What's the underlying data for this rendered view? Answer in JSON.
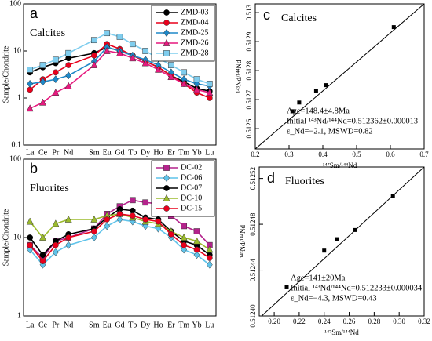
{
  "chart_data": [
    {
      "type": "line",
      "panel_label": "a",
      "subtitle": "Calcites",
      "y_label": "Sample/Chondrite",
      "log_scale": true,
      "categories": [
        "La",
        "Ce",
        "Pr",
        "Nd",
        "Sm",
        "Eu",
        "Gd",
        "Tb",
        "Dy",
        "Ho",
        "Er",
        "Tm",
        "Yb",
        "Lu"
      ],
      "ylim": [
        0.1,
        100
      ],
      "yticks": [
        0.1,
        1,
        10,
        100
      ],
      "legend": "upper right",
      "series": [
        {
          "name": "ZMD-03",
          "color": "#000000",
          "marker": "circle",
          "values": [
            3.5,
            4.5,
            5.5,
            7,
            9,
            12,
            10,
            8,
            6,
            4.5,
            3,
            2.2,
            1.6,
            1.4
          ]
        },
        {
          "name": "ZMD-04",
          "color": "#e8001c",
          "marker": "circle",
          "values": [
            1.5,
            2.5,
            3.5,
            5,
            8,
            14,
            11,
            8,
            6,
            4.5,
            3,
            2,
            1.3,
            1.0
          ]
        },
        {
          "name": "ZMD-25",
          "color": "#1e88c8",
          "marker": "diamond",
          "values": [
            2,
            2.2,
            2.5,
            3,
            6,
            12,
            10,
            8,
            6.5,
            5,
            3.5,
            2.5,
            2,
            1.8
          ]
        },
        {
          "name": "ZMD-26",
          "color": "#e6197e",
          "marker": "triangle",
          "values": [
            0.6,
            0.8,
            1.3,
            1.8,
            5,
            10,
            9,
            7,
            5.5,
            4,
            2.8,
            2,
            1.5,
            1.3
          ]
        },
        {
          "name": "ZMD-28",
          "color": "#7fcdee",
          "marker": "square",
          "values": [
            4,
            5,
            6.5,
            9,
            17,
            24,
            20,
            14,
            10,
            7,
            5,
            3.5,
            2.5,
            2
          ]
        }
      ]
    },
    {
      "type": "scatter",
      "panel_label": "c",
      "subtitle": "Calcites",
      "x_label": "¹⁴⁷Sm/¹⁴⁴Nd",
      "y_label": "¹⁴³Nd/¹⁴⁴Nd",
      "xlim": [
        0.2,
        0.7
      ],
      "xticks": [
        0.2,
        0.3,
        0.4,
        0.5,
        0.6,
        0.7
      ],
      "ylim": [
        0.51253,
        0.51303
      ],
      "yticks": [
        0.5126,
        0.5127,
        0.5128,
        0.5129,
        0.513
      ],
      "color": "#000000",
      "x": [
        0.31,
        0.33,
        0.38,
        0.41,
        0.61
      ],
      "values": [
        0.51266,
        0.51269,
        0.51273,
        0.51275,
        0.51295
      ],
      "fit_line": {
        "x": [
          0.2,
          0.7
        ],
        "y": [
          0.51253,
          0.51303
        ]
      },
      "annotations": [
        "Age=148.4±4.8Ma",
        "Initial ¹⁴³Nd/¹⁴⁴Nd=0.512362±0.000013",
        "ε_Nd=−2.1, MSWD=0.82"
      ]
    },
    {
      "type": "line",
      "panel_label": "b",
      "subtitle": "Fluorites",
      "y_label": "Sample/Chondrite",
      "log_scale": true,
      "categories": [
        "La",
        "Ce",
        "Pr",
        "Nd",
        "Sm",
        "Eu",
        "Gd",
        "Tb",
        "Dy",
        "Ho",
        "Er",
        "Tm",
        "Yb",
        "Lu"
      ],
      "ylim": [
        1,
        100
      ],
      "yticks": [
        1,
        10,
        100
      ],
      "legend": "upper right",
      "series": [
        {
          "name": "DC-02",
          "color": "#b4238c",
          "marker": "square",
          "values": [
            8,
            5.5,
            9,
            10,
            13,
            20,
            25,
            30,
            28,
            27,
            19,
            14,
            12,
            8
          ]
        },
        {
          "name": "DC-06",
          "color": "#5fc3ea",
          "marker": "diamond",
          "values": [
            7,
            4.5,
            6.5,
            8,
            10,
            14,
            17,
            16,
            14,
            13,
            10,
            7,
            6,
            4.5
          ]
        },
        {
          "name": "DC-07",
          "color": "#000000",
          "marker": "circle",
          "values": [
            10,
            6,
            9,
            11,
            13,
            18,
            23,
            22,
            18,
            17,
            12,
            9,
            8,
            6
          ]
        },
        {
          "name": "DC-10",
          "color": "#9bbb2c",
          "marker": "triangle",
          "values": [
            16,
            10,
            15,
            17,
            17,
            19,
            20,
            18,
            16,
            15,
            12,
            10,
            9,
            7
          ]
        },
        {
          "name": "DC-15",
          "color": "#e8001c",
          "marker": "circle",
          "values": [
            8,
            5,
            8,
            10,
            12,
            17,
            20,
            19,
            17,
            16,
            11,
            8,
            7,
            5.5
          ]
        }
      ]
    },
    {
      "type": "scatter",
      "panel_label": "d",
      "subtitle": "Fluorites",
      "x_label": "¹⁴⁷Sm/¹⁴⁴Nd",
      "y_label": "¹⁴³Nd/¹⁴⁴Nd",
      "xlim": [
        0.188,
        0.32
      ],
      "xticks": [
        {
          "value": 0.2,
          "label": "0.20"
        },
        {
          "value": 0.22,
          "label": "0.22"
        },
        {
          "value": 0.24,
          "label": "0.24"
        },
        {
          "value": 0.26,
          "label": "0.26"
        },
        {
          "value": 0.28,
          "label": "0.28"
        },
        {
          "value": 0.3,
          "label": "0.30"
        },
        {
          "value": 0.32,
          "label": "0.32"
        }
      ],
      "ylim": [
        0.5124,
        0.51253
      ],
      "yticks": [
        {
          "value": 0.5124,
          "label": "0.51240"
        },
        {
          "value": 0.51244,
          "label": "0.51244"
        },
        {
          "value": 0.51248,
          "label": "0.51248"
        },
        {
          "value": 0.51252,
          "label": "0.51252"
        }
      ],
      "color": "#000000",
      "x": [
        0.21,
        0.24,
        0.25,
        0.265,
        0.295
      ],
      "values": [
        0.512425,
        0.512457,
        0.512467,
        0.512475,
        0.512505
      ],
      "fit_line": {
        "x": [
          0.19,
          0.32
        ],
        "y": [
          0.5124,
          0.51253
        ]
      },
      "annotations": [
        "Age=141±20Ma",
        "Initial ¹⁴³Nd/¹⁴⁴Nd=0.512233±0.000034",
        "ε_Nd=−4.3, MSWD=0.43"
      ]
    }
  ]
}
